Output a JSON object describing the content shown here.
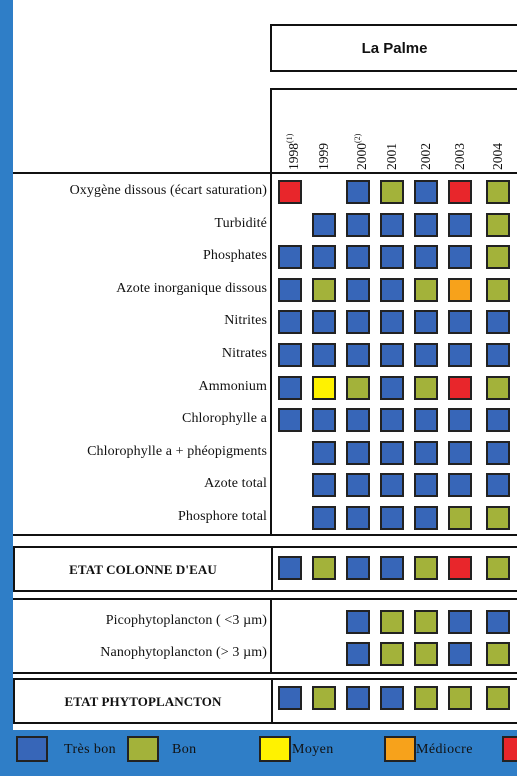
{
  "colors": {
    "tres_bon": "#3766B8",
    "bon": "#A3B23A",
    "moyen": "#FFF200",
    "mediocre": "#F7A21B",
    "mauvais": "#E8262B"
  },
  "site": "La Palme",
  "years": [
    {
      "year": "1998",
      "note": "(1)"
    },
    {
      "year": "1999",
      "note": ""
    },
    {
      "year": "2000",
      "note": "(2)"
    },
    {
      "year": "2001",
      "note": ""
    },
    {
      "year": "2002",
      "note": ""
    },
    {
      "year": "2003",
      "note": ""
    },
    {
      "year": "2004",
      "note": ""
    }
  ],
  "water_column": {
    "rows": [
      {
        "label": "Oxygène dissous (écart saturation)",
        "grades": [
          "mauvais",
          "",
          "tres_bon",
          "bon",
          "tres_bon",
          "mauvais",
          "bon"
        ]
      },
      {
        "label": "Turbidité",
        "grades": [
          "",
          "tres_bon",
          "tres_bon",
          "tres_bon",
          "tres_bon",
          "tres_bon",
          "bon"
        ]
      },
      {
        "label": "Phosphates",
        "grades": [
          "tres_bon",
          "tres_bon",
          "tres_bon",
          "tres_bon",
          "tres_bon",
          "tres_bon",
          "bon"
        ]
      },
      {
        "label": "Azote inorganique dissous",
        "grades": [
          "tres_bon",
          "bon",
          "tres_bon",
          "tres_bon",
          "bon",
          "mediocre",
          "bon"
        ]
      },
      {
        "label": "Nitrites",
        "grades": [
          "tres_bon",
          "tres_bon",
          "tres_bon",
          "tres_bon",
          "tres_bon",
          "tres_bon",
          "tres_bon"
        ]
      },
      {
        "label": "Nitrates",
        "grades": [
          "tres_bon",
          "tres_bon",
          "tres_bon",
          "tres_bon",
          "tres_bon",
          "tres_bon",
          "tres_bon"
        ]
      },
      {
        "label": "Ammonium",
        "grades": [
          "tres_bon",
          "moyen",
          "bon",
          "tres_bon",
          "bon",
          "mauvais",
          "bon"
        ]
      },
      {
        "label": "Chlorophylle a",
        "grades": [
          "tres_bon",
          "tres_bon",
          "tres_bon",
          "tres_bon",
          "tres_bon",
          "tres_bon",
          "tres_bon"
        ]
      },
      {
        "label": "Chlorophylle a + phéopigments",
        "grades": [
          "",
          "tres_bon",
          "tres_bon",
          "tres_bon",
          "tres_bon",
          "tres_bon",
          "tres_bon"
        ]
      },
      {
        "label": "Azote total",
        "grades": [
          "",
          "tres_bon",
          "tres_bon",
          "tres_bon",
          "tres_bon",
          "tres_bon",
          "tres_bon"
        ]
      },
      {
        "label": "Phosphore total",
        "grades": [
          "",
          "tres_bon",
          "tres_bon",
          "tres_bon",
          "tres_bon",
          "bon",
          "bon"
        ]
      }
    ],
    "summary": {
      "label": "ETAT COLONNE D'EAU",
      "grades": [
        "tres_bon",
        "bon",
        "tres_bon",
        "tres_bon",
        "bon",
        "mauvais",
        "bon"
      ]
    }
  },
  "phytoplankton": {
    "rows": [
      {
        "label": "Picophytoplancton ( <3 µm)",
        "grades": [
          "",
          "",
          "tres_bon",
          "bon",
          "bon",
          "tres_bon",
          "tres_bon"
        ]
      },
      {
        "label": "Nanophytoplancton (> 3 µm)",
        "grades": [
          "",
          "",
          "tres_bon",
          "bon",
          "bon",
          "tres_bon",
          "bon"
        ]
      }
    ],
    "summary": {
      "label": "ETAT PHYTOPLANCTON",
      "grades": [
        "tres_bon",
        "bon",
        "tres_bon",
        "tres_bon",
        "bon",
        "bon",
        "bon"
      ]
    }
  },
  "legend": [
    {
      "key": "tres_bon",
      "label": "Très bon"
    },
    {
      "key": "bon",
      "label": "Bon"
    },
    {
      "key": "moyen",
      "label": "Moyen"
    },
    {
      "key": "mediocre",
      "label": "Médiocre"
    },
    {
      "key": "mauvais",
      "label": ""
    }
  ]
}
